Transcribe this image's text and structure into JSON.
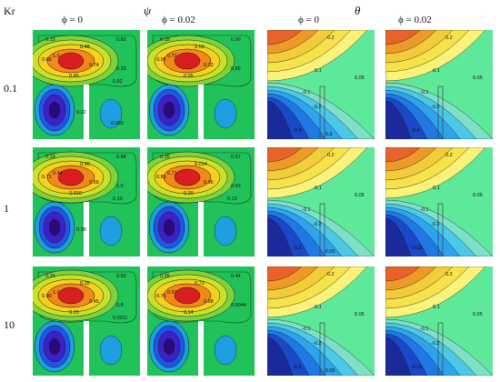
{
  "headers": {
    "row_param": "Kr",
    "psi_symbol": "ψ",
    "theta_symbol": "θ",
    "columns": [
      "ϕ = 0",
      "ϕ = 0.02",
      "ϕ = 0",
      "ϕ = 0.02"
    ]
  },
  "rows": [
    {
      "kr": "0.1"
    },
    {
      "kr": "1"
    },
    {
      "kr": "10"
    }
  ],
  "palette": {
    "psi_bg": "#22c25a",
    "psi_ring1": "#7fd33a",
    "psi_ring2": "#c8e22a",
    "psi_ring3": "#f5d01e",
    "psi_ring4": "#f28a1a",
    "psi_core": "#d81e1e",
    "neg_ring1": "#1ea0e0",
    "neg_ring2": "#2055e8",
    "neg_ring3": "#3a22c8",
    "neg_core": "#2a0a78",
    "theta_bg": "#5ee89a",
    "theta_hot": "#f0e24a",
    "theta_cold": "#1a6ae0"
  },
  "psi_labels": [
    [
      [
        "0.19",
        "0.48",
        "0.82",
        "0.88",
        "1.0",
        "0.74",
        "0.33",
        "0.45",
        "0.82",
        "0.22",
        "0.085"
      ],
      [
        "0.18",
        "0.59",
        "0.90",
        "0.95",
        "0.72",
        "0.32",
        "0.85",
        "0.95"
      ]
    ],
    [
      [
        "0.19",
        "0.90",
        "0.88",
        "0.71",
        "0.44",
        "0.59",
        "1.0",
        "0.010",
        "0.13",
        "0.28"
      ],
      [
        "0.35",
        "0.014",
        "0.57",
        "0.85",
        "0.71",
        "0.96",
        "0.43",
        "0.20",
        "0.13"
      ]
    ],
    [
      [
        "0.15",
        "0.35",
        "0.50",
        "0.90",
        "1.0",
        "0.45",
        "0.8",
        "0.15",
        "0.0011"
      ],
      [
        "0.35",
        "0.73",
        "0.44",
        "0.76",
        "0.87",
        "0.98",
        "0.0044",
        "0.14"
      ]
    ]
  ],
  "theta_labels": [
    [
      [
        "0.2",
        "0.1",
        "0.05",
        "-0.1",
        "-0.2",
        "-0.4",
        "-0.3"
      ],
      [
        "0.2",
        "0.1",
        "0.05",
        "-0.1",
        "-0.2",
        "-0.4"
      ]
    ],
    [
      [
        "0.2",
        "0.1",
        "0.05",
        "-0.1",
        "-0.2",
        "-0.3",
        "-0.05"
      ],
      [
        "0.2",
        "0.1",
        "0.05",
        "-0.1",
        "-0.2",
        "-0.05"
      ]
    ],
    [
      [
        "0.2",
        "0.1",
        "0.05",
        "-0.1",
        "-0.2",
        "-0.3",
        "-0.05"
      ],
      [
        "0.2",
        "0.1",
        "0.05",
        "-0.1",
        "-0.2",
        "-0.05"
      ]
    ]
  ]
}
